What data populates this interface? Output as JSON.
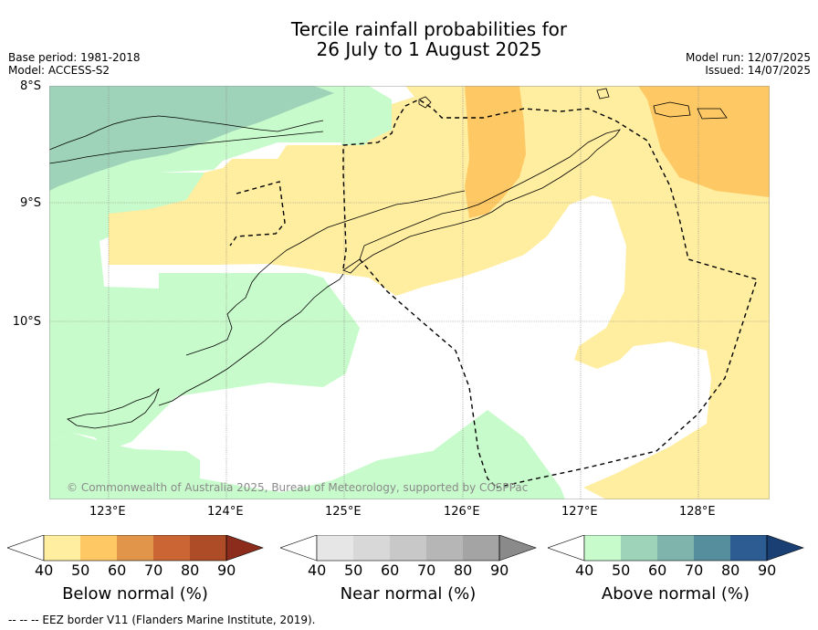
{
  "title": {
    "line1": "Tercile rainfall probabilities for",
    "line2": "26 July to 1 August 2025"
  },
  "meta": {
    "base_period": "Base period: 1981-2018",
    "model": "Model: ACCESS-S2",
    "model_run": "Model run: 12/07/2025",
    "issued": "Issued: 14/07/2025"
  },
  "map": {
    "lat_labels": [
      "8°S",
      "9°S",
      "10°S"
    ],
    "lon_labels": [
      "123°E",
      "124°E",
      "125°E",
      "126°E",
      "127°E",
      "128°E"
    ],
    "copyright": "© Commonwealth of Australia 2025, Bureau of Meteorology, supported by COSPPac",
    "colors": {
      "below_50": "#ffeda0",
      "below_60": "#fec965",
      "above_50": "#c8fbcb",
      "above_60": "#9fd3b9",
      "coast": "#000000",
      "grid": "#888888"
    }
  },
  "colorbars": [
    {
      "name": "below",
      "title": "Below normal (%)",
      "ticks": [
        "40",
        "50",
        "60",
        "70",
        "80",
        "90"
      ],
      "colors": [
        "#ffeda0",
        "#fec965",
        "#e0954a",
        "#cb6634",
        "#ad4c26",
        "#8c2c1d"
      ]
    },
    {
      "name": "near",
      "title": "Near normal (%)",
      "ticks": [
        "40",
        "50",
        "60",
        "70",
        "80",
        "90"
      ],
      "colors": [
        "#e6e6e6",
        "#d8d8d8",
        "#c8c8c8",
        "#b6b6b6",
        "#a4a4a4",
        "#8a8a8a"
      ]
    },
    {
      "name": "above",
      "title": "Above normal (%)",
      "ticks": [
        "40",
        "50",
        "60",
        "70",
        "80",
        "90"
      ],
      "colors": [
        "#c8fbcb",
        "#9fd3b9",
        "#7eb4ab",
        "#578e9d",
        "#2c5c91",
        "#1a3f73"
      ]
    }
  ],
  "footer": {
    "eez_note": "--  --  -- EEZ border V11 (Flanders Marine Institute, 2019)."
  }
}
